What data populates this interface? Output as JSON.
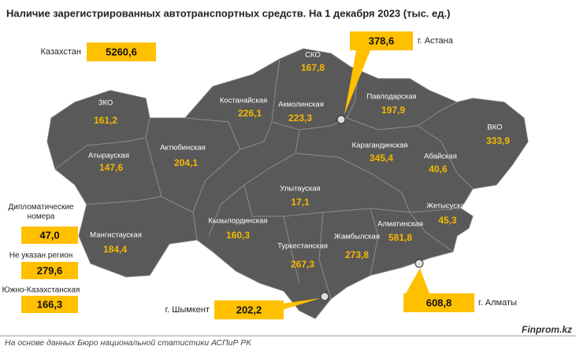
{
  "title": "Наличие зарегистрированных автотранспортных средств. На 1 декабря 2023 (тыс. ед.)",
  "total": {
    "label": "Казахстан",
    "value": "5260,6"
  },
  "regions": [
    {
      "name": "СКО",
      "value": "167,8"
    },
    {
      "name": "Костанайская",
      "value": "226,1"
    },
    {
      "name": "Акмолинская",
      "value": "223,3"
    },
    {
      "name": "Павлодарская",
      "value": "197,9"
    },
    {
      "name": "ЗКО",
      "value": "161,2"
    },
    {
      "name": "ВКО",
      "value": "333,9"
    },
    {
      "name": "Актюбинская",
      "value": "204,1"
    },
    {
      "name": "Атырауская",
      "value": "147,6"
    },
    {
      "name": "Карагандинская",
      "value": "345,4"
    },
    {
      "name": "Абайская",
      "value": "40,6"
    },
    {
      "name": "Улытауская",
      "value": "17,1"
    },
    {
      "name": "Кызылординская",
      "value": "160,3"
    },
    {
      "name": "Мангистауская",
      "value": "184,4"
    },
    {
      "name": "Жетысуская",
      "value": "45,3"
    },
    {
      "name": "Алматинская",
      "value": "581,8"
    },
    {
      "name": "Жамбылская",
      "value": "273,8"
    },
    {
      "name": "Туркестанская",
      "value": "267,3"
    }
  ],
  "cities": [
    {
      "name": "г. Астана",
      "value": "378,6"
    },
    {
      "name": "г. Шымкент",
      "value": "202,2"
    },
    {
      "name": "г. Алматы",
      "value": "608,8"
    }
  ],
  "other": [
    {
      "label": "Дипломатические номера",
      "value": "47,0"
    },
    {
      "label": "Не указан регион",
      "value": "279,6"
    },
    {
      "label": "Южно-Казахстанская",
      "value": "166,3"
    }
  ],
  "source": "На основе данных Бюро национальной статистики АСПиР РК",
  "brand": "Finprom.kz"
}
